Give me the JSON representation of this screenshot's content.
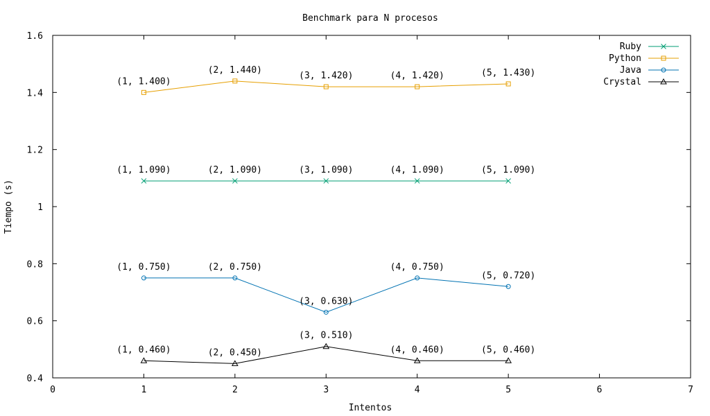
{
  "chart_data": {
    "type": "line",
    "title": "Benchmark para N procesos",
    "xlabel": "Intentos",
    "ylabel": "Tiempo (s)",
    "xlim": [
      0,
      7
    ],
    "ylim": [
      0.4,
      1.6
    ],
    "xticks": [
      0,
      1,
      2,
      3,
      4,
      5,
      6,
      7
    ],
    "xtick_labels": [
      "0",
      "1",
      "2",
      "3",
      "4",
      "5",
      "6",
      "7"
    ],
    "yticks": [
      0.4,
      0.6,
      0.8,
      1.0,
      1.2,
      1.4,
      1.6
    ],
    "ytick_labels": [
      "0.4",
      "0.6",
      "0.8",
      "1",
      "1.2",
      "1.4",
      "1.6"
    ],
    "grid": false,
    "legend_position": "top-right",
    "x": [
      1,
      2,
      3,
      4,
      5
    ],
    "series": [
      {
        "name": "Ruby",
        "color": "#009e73",
        "marker": "x-cross",
        "values": [
          1.09,
          1.09,
          1.09,
          1.09,
          1.09
        ],
        "labels": [
          "(1, 1.090)",
          "(2, 1.090)",
          "(3, 1.090)",
          "(4, 1.090)",
          "(5, 1.090)"
        ]
      },
      {
        "name": "Python",
        "color": "#e69f00",
        "marker": "open-square",
        "values": [
          1.4,
          1.44,
          1.42,
          1.42,
          1.43
        ],
        "labels": [
          "(1, 1.400)",
          "(2, 1.440)",
          "(3, 1.420)",
          "(4, 1.420)",
          "(5, 1.430)"
        ]
      },
      {
        "name": "Java",
        "color": "#0072b2",
        "marker": "open-circle",
        "values": [
          0.75,
          0.75,
          0.63,
          0.75,
          0.72
        ],
        "labels": [
          "(1, 0.750)",
          "(2, 0.750)",
          "(3, 0.630)",
          "(4, 0.750)",
          "(5, 0.720)"
        ]
      },
      {
        "name": "Crystal",
        "color": "#000000",
        "marker": "open-triangle",
        "values": [
          0.46,
          0.45,
          0.51,
          0.46,
          0.46
        ],
        "labels": [
          "(1, 0.460)",
          "(2, 0.450)",
          "(3, 0.510)",
          "(4, 0.460)",
          "(5, 0.460)"
        ]
      }
    ]
  }
}
